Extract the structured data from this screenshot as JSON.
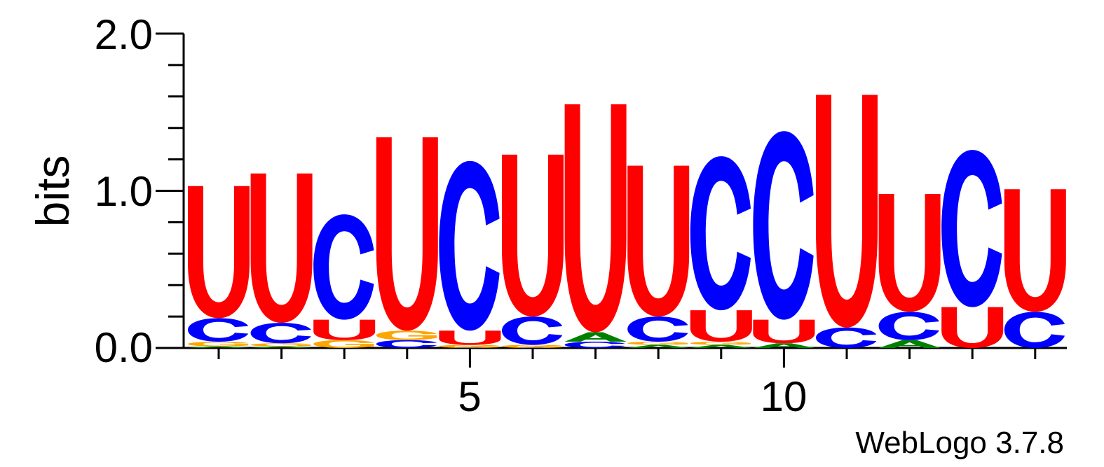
{
  "chart_data": {
    "type": "sequence-logo",
    "ylabel": "bits",
    "ylim": [
      0,
      2.0
    ],
    "y_ticks": [
      "0.0",
      "1.0",
      "2.0"
    ],
    "x_tick_labels": [
      {
        "position": 5,
        "label": "5"
      },
      {
        "position": 10,
        "label": "10"
      }
    ],
    "footer": "WebLogo 3.7.8",
    "colors": {
      "U": "#ff0000",
      "C": "#0000ff",
      "G": "#ffa500",
      "A": "#008000"
    },
    "positions": [
      {
        "pos": 1,
        "stack": [
          {
            "letter": "A",
            "bits": 0.01
          },
          {
            "letter": "G",
            "bits": 0.03
          },
          {
            "letter": "C",
            "bits": 0.15
          },
          {
            "letter": "U",
            "bits": 0.84
          }
        ]
      },
      {
        "pos": 2,
        "stack": [
          {
            "letter": "A",
            "bits": 0.01
          },
          {
            "letter": "G",
            "bits": 0.02
          },
          {
            "letter": "C",
            "bits": 0.13
          },
          {
            "letter": "U",
            "bits": 0.95
          }
        ]
      },
      {
        "pos": 3,
        "stack": [
          {
            "letter": "G",
            "bits": 0.05
          },
          {
            "letter": "U",
            "bits": 0.13
          },
          {
            "letter": "C",
            "bits": 0.67
          }
        ]
      },
      {
        "pos": 4,
        "stack": [
          {
            "letter": "C",
            "bits": 0.05
          },
          {
            "letter": "G",
            "bits": 0.06
          },
          {
            "letter": "U",
            "bits": 1.23
          }
        ]
      },
      {
        "pos": 5,
        "stack": [
          {
            "letter": "G",
            "bits": 0.02
          },
          {
            "letter": "U",
            "bits": 0.09
          },
          {
            "letter": "C",
            "bits": 1.08
          }
        ]
      },
      {
        "pos": 6,
        "stack": [
          {
            "letter": "G",
            "bits": 0.02
          },
          {
            "letter": "C",
            "bits": 0.18
          },
          {
            "letter": "U",
            "bits": 1.03
          }
        ]
      },
      {
        "pos": 7,
        "stack": [
          {
            "letter": "C",
            "bits": 0.04
          },
          {
            "letter": "A",
            "bits": 0.06
          },
          {
            "letter": "U",
            "bits": 1.45
          }
        ]
      },
      {
        "pos": 8,
        "stack": [
          {
            "letter": "A",
            "bits": 0.02
          },
          {
            "letter": "G",
            "bits": 0.02
          },
          {
            "letter": "C",
            "bits": 0.16
          },
          {
            "letter": "U",
            "bits": 0.96
          }
        ]
      },
      {
        "pos": 9,
        "stack": [
          {
            "letter": "A",
            "bits": 0.02
          },
          {
            "letter": "G",
            "bits": 0.02
          },
          {
            "letter": "U",
            "bits": 0.2
          },
          {
            "letter": "C",
            "bits": 0.98
          }
        ]
      },
      {
        "pos": 10,
        "stack": [
          {
            "letter": "A",
            "bits": 0.03
          },
          {
            "letter": "U",
            "bits": 0.15
          },
          {
            "letter": "C",
            "bits": 1.2
          }
        ]
      },
      {
        "pos": 11,
        "stack": [
          {
            "letter": "C",
            "bits": 0.13
          },
          {
            "letter": "U",
            "bits": 1.48
          }
        ]
      },
      {
        "pos": 12,
        "stack": [
          {
            "letter": "A",
            "bits": 0.05
          },
          {
            "letter": "C",
            "bits": 0.18
          },
          {
            "letter": "U",
            "bits": 0.75
          }
        ]
      },
      {
        "pos": 13,
        "stack": [
          {
            "letter": "U",
            "bits": 0.26
          },
          {
            "letter": "C",
            "bits": 1.0
          }
        ]
      },
      {
        "pos": 14,
        "stack": [
          {
            "letter": "C",
            "bits": 0.23
          },
          {
            "letter": "U",
            "bits": 0.78
          }
        ]
      }
    ]
  }
}
